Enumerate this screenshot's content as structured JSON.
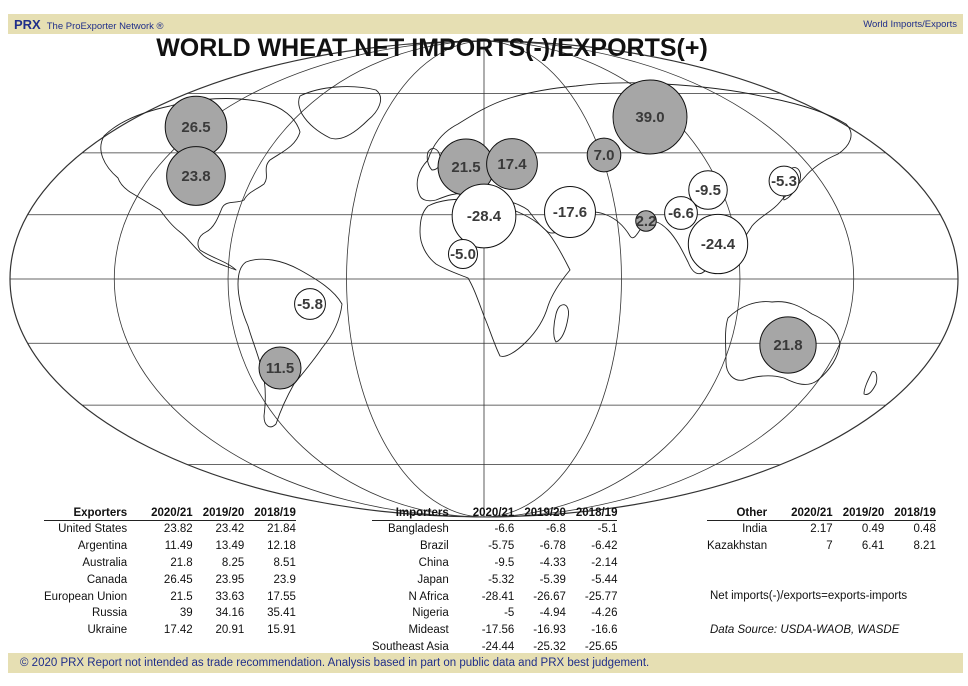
{
  "header": {
    "logo": "PRX",
    "network": "The ProExporter Network ®",
    "section": "World Imports/Exports"
  },
  "chart_data": {
    "type": "bubble-map",
    "title": "WORLD WHEAT NET IMPORTS(-)/EXPORTS(+)",
    "bubbles": [
      {
        "label": "26.5",
        "value": 26.45,
        "kind": "export"
      },
      {
        "label": "23.8",
        "value": 23.82,
        "kind": "export"
      },
      {
        "label": "39.0",
        "value": 39,
        "kind": "export"
      },
      {
        "label": "21.5",
        "value": 21.5,
        "kind": "export"
      },
      {
        "label": "17.4",
        "value": 17.42,
        "kind": "export"
      },
      {
        "label": "7.0",
        "value": 7,
        "kind": "export"
      },
      {
        "label": "21.8",
        "value": 21.8,
        "kind": "export"
      },
      {
        "label": "11.5",
        "value": 11.49,
        "kind": "export"
      },
      {
        "label": "2.2",
        "value": 2.17,
        "kind": "export"
      },
      {
        "label": "-28.4",
        "value": -28.41,
        "kind": "import"
      },
      {
        "label": "-17.6",
        "value": -17.56,
        "kind": "import"
      },
      {
        "label": "-24.4",
        "value": -24.44,
        "kind": "import"
      },
      {
        "label": "-9.5",
        "value": -9.5,
        "kind": "import"
      },
      {
        "label": "-6.6",
        "value": -6.6,
        "kind": "import"
      },
      {
        "label": "-5.8",
        "value": -5.75,
        "kind": "import"
      },
      {
        "label": "-5.0",
        "value": -5,
        "kind": "import"
      },
      {
        "label": "-5.3",
        "value": -5.32,
        "kind": "import"
      }
    ],
    "colors": {
      "export": "#a6a6a6",
      "import": "#ffffff",
      "outline": "#111111",
      "grid": "#333333"
    }
  },
  "tables": {
    "exporters": {
      "headers": [
        "Exporters",
        "2020/21",
        "2019/20",
        "2018/19"
      ],
      "rows": [
        [
          "United States",
          "23.82",
          "23.42",
          "21.84"
        ],
        [
          "Argentina",
          "11.49",
          "13.49",
          "12.18"
        ],
        [
          "Australia",
          "21.8",
          "8.25",
          "8.51"
        ],
        [
          "Canada",
          "26.45",
          "23.95",
          "23.9"
        ],
        [
          "European Union",
          "21.5",
          "33.63",
          "17.55"
        ],
        [
          "Russia",
          "39",
          "34.16",
          "35.41"
        ],
        [
          "Ukraine",
          "17.42",
          "20.91",
          "15.91"
        ]
      ]
    },
    "importers": {
      "headers": [
        "Importers",
        "2020/21",
        "2019/20",
        "2018/19"
      ],
      "rows": [
        [
          "Bangladesh",
          "-6.6",
          "-6.8",
          "-5.1"
        ],
        [
          "Brazil",
          "-5.75",
          "-6.78",
          "-6.42"
        ],
        [
          "China",
          "-9.5",
          "-4.33",
          "-2.14"
        ],
        [
          "Japan",
          "-5.32",
          "-5.39",
          "-5.44"
        ],
        [
          "N Africa",
          "-28.41",
          "-26.67",
          "-25.77"
        ],
        [
          "Nigeria",
          "-5",
          "-4.94",
          "-4.26"
        ],
        [
          "Mideast",
          "-17.56",
          "-16.93",
          "-16.6"
        ],
        [
          "Southeast Asia",
          "-24.44",
          "-25.32",
          "-25.65"
        ]
      ]
    },
    "other": {
      "headers": [
        "Other",
        "2020/21",
        "2019/20",
        "2018/19"
      ],
      "rows": [
        [
          "India",
          "2.17",
          "0.49",
          "0.48"
        ],
        [
          "Kazakhstan",
          "7",
          "6.41",
          "8.21"
        ]
      ]
    }
  },
  "notes": {
    "formula": "Net imports(-)/exports=exports-imports",
    "source": "Data Source: USDA-WAOB, WASDE"
  },
  "footer": {
    "text": "© 2020 PRX  Report not intended as trade recommendation. Analysis based in part on public data and PRX best judgement."
  }
}
